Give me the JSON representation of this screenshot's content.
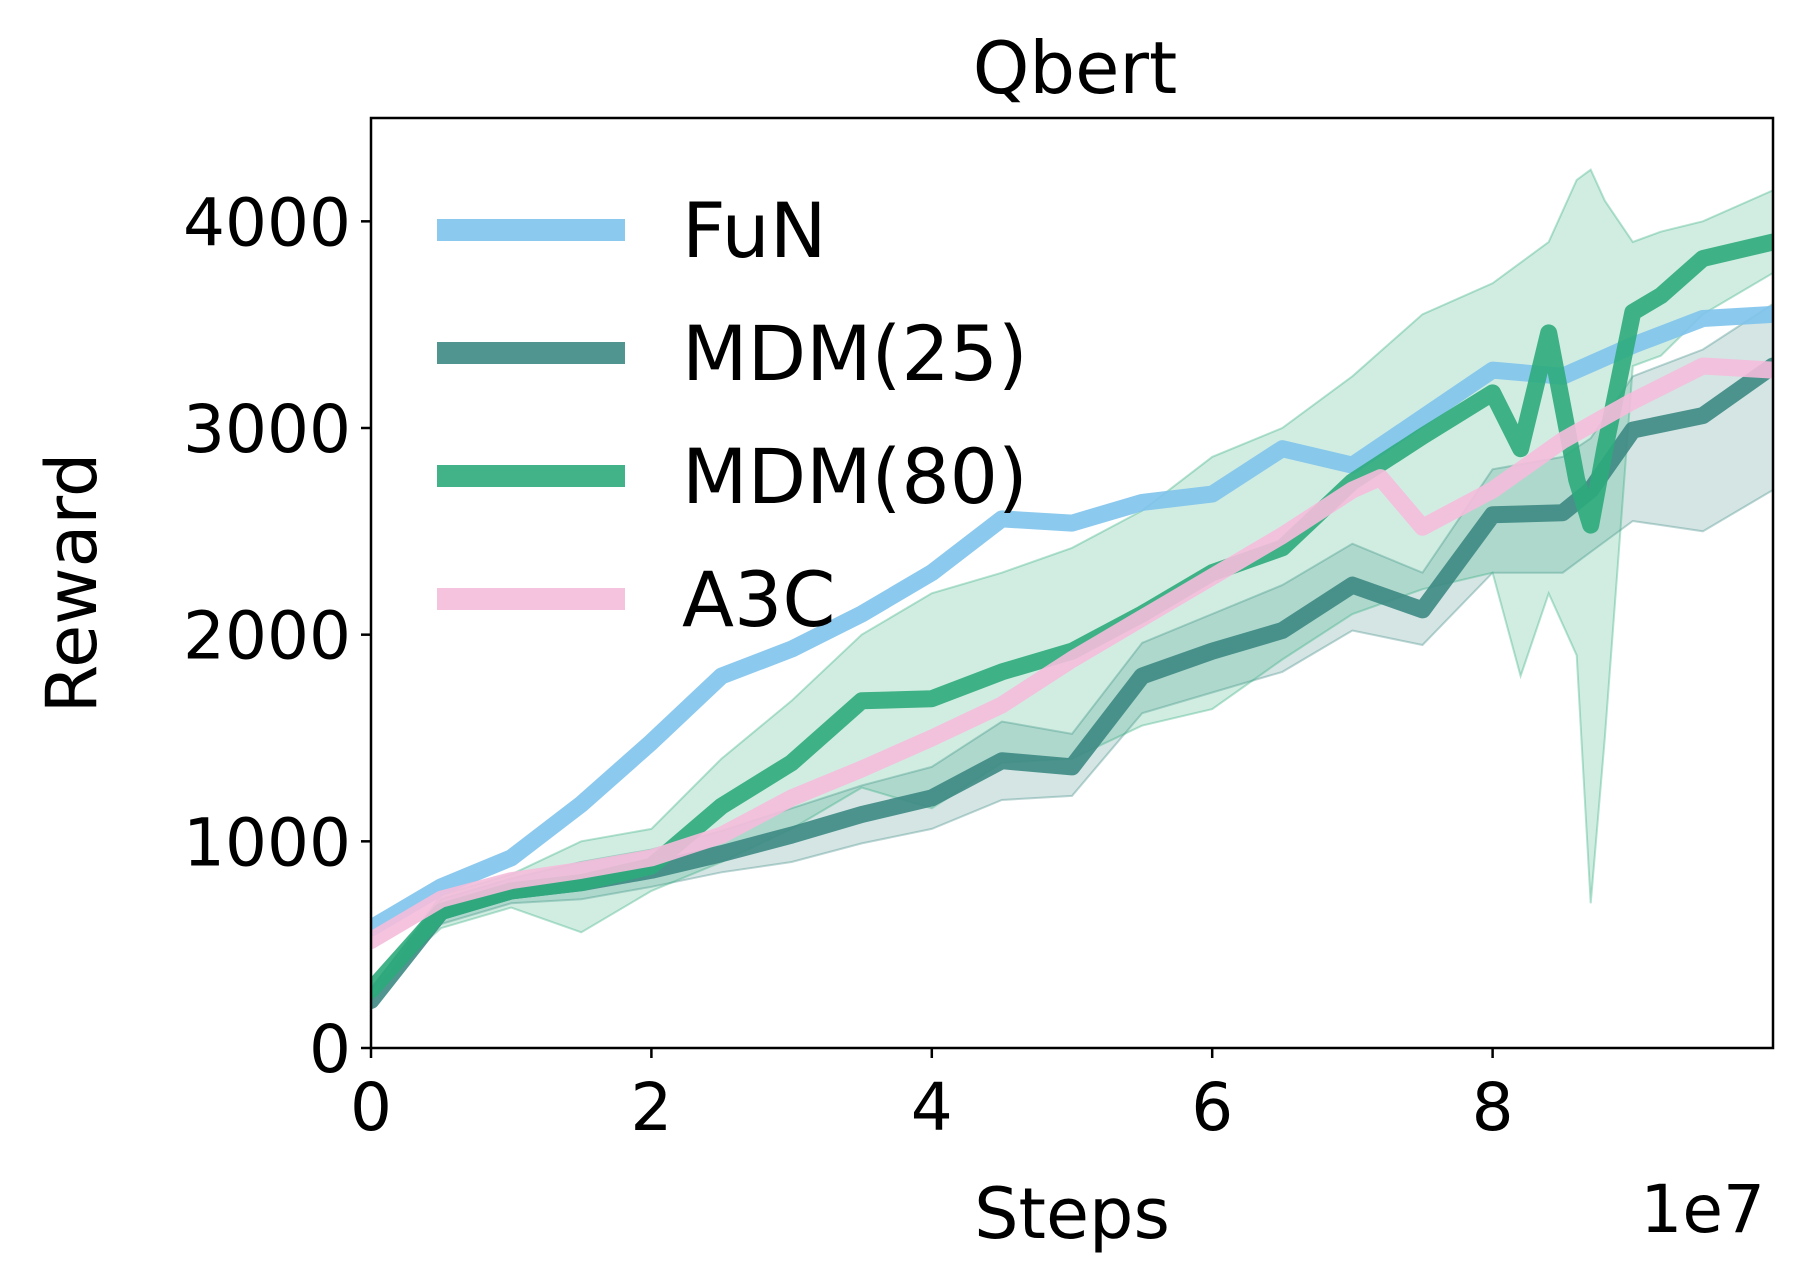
{
  "chart_data": {
    "type": "line",
    "title": "Qbert",
    "xlabel": "Steps",
    "ylabel": "Reward",
    "x_offset_label": "1e7",
    "xlim": [
      0,
      10
    ],
    "ylim": [
      0,
      4500
    ],
    "xticks": [
      0,
      2,
      4,
      6,
      8
    ],
    "yticks": [
      0,
      1000,
      2000,
      3000,
      4000
    ],
    "grid": false,
    "legend_position": "upper-left",
    "series": [
      {
        "name": "FuN",
        "color": "#7fc3ec",
        "x": [
          0,
          0.5,
          1.0,
          1.5,
          2.0,
          2.5,
          3.0,
          3.5,
          4.0,
          4.5,
          5.0,
          5.5,
          6.0,
          6.5,
          7.0,
          7.5,
          8.0,
          8.5,
          9.0,
          9.5,
          10.0
        ],
        "y": [
          580,
          780,
          920,
          1180,
          1480,
          1800,
          1930,
          2100,
          2300,
          2560,
          2540,
          2640,
          2680,
          2900,
          2820,
          3050,
          3280,
          3250,
          3400,
          3530,
          3550
        ]
      },
      {
        "name": "MDM(25)",
        "color": "#3d8a83",
        "band_color": "#3d8a83",
        "x": [
          0,
          0.5,
          1.0,
          1.5,
          2.0,
          2.5,
          3.0,
          3.5,
          4.0,
          4.5,
          5.0,
          5.5,
          6.0,
          6.5,
          7.0,
          7.5,
          8.0,
          8.5,
          8.7,
          9.0,
          9.5,
          10.0
        ],
        "y": [
          230,
          660,
          760,
          800,
          860,
          940,
          1030,
          1130,
          1210,
          1390,
          1360,
          1800,
          1920,
          2020,
          2240,
          2120,
          2580,
          2590,
          2700,
          2990,
          3060,
          3300
        ],
        "y_low": [
          230,
          600,
          700,
          720,
          780,
          850,
          900,
          990,
          1060,
          1200,
          1220,
          1620,
          1720,
          1820,
          2020,
          1950,
          2300,
          2300,
          2400,
          2550,
          2500,
          2700
        ],
        "y_high": [
          230,
          720,
          820,
          900,
          960,
          1050,
          1160,
          1270,
          1360,
          1580,
          1520,
          1960,
          2100,
          2240,
          2440,
          2300,
          2800,
          2860,
          2950,
          3250,
          3380,
          3600
        ]
      },
      {
        "name": "MDM(80)",
        "color": "#2eab7c",
        "band_color": "#2eab7c",
        "x": [
          0,
          0.5,
          1.0,
          1.5,
          2.0,
          2.5,
          3.0,
          3.5,
          4.0,
          4.5,
          5.0,
          5.5,
          6.0,
          6.5,
          7.0,
          7.5,
          8.0,
          8.2,
          8.4,
          8.6,
          8.7,
          8.8,
          9.0,
          9.2,
          9.5,
          10.0
        ],
        "y": [
          280,
          660,
          760,
          800,
          880,
          1170,
          1380,
          1680,
          1690,
          1820,
          1920,
          2100,
          2300,
          2420,
          2740,
          2960,
          3170,
          2900,
          3460,
          2750,
          2530,
          2900,
          3560,
          3640,
          3820,
          3900
        ],
        "y_low": [
          280,
          580,
          680,
          560,
          760,
          900,
          1060,
          1260,
          1160,
          1380,
          1400,
          1560,
          1640,
          1880,
          2100,
          2220,
          2300,
          1800,
          2200,
          1900,
          700,
          1500,
          3300,
          3350,
          3550,
          3750
        ],
        "y_high": [
          280,
          740,
          840,
          1000,
          1060,
          1400,
          1680,
          2000,
          2200,
          2300,
          2420,
          2600,
          2860,
          3000,
          3250,
          3550,
          3700,
          3800,
          3900,
          4200,
          4250,
          4100,
          3900,
          3950,
          4000,
          4150
        ]
      },
      {
        "name": "A3C",
        "color": "#f5bddb",
        "x": [
          0,
          0.5,
          1.0,
          1.5,
          2.0,
          2.5,
          3.0,
          3.5,
          4.0,
          4.5,
          5.0,
          5.5,
          6.0,
          6.5,
          7.0,
          7.2,
          7.5,
          8.0,
          8.5,
          9.0,
          9.5,
          10.0
        ],
        "y": [
          520,
          720,
          810,
          860,
          920,
          1030,
          1210,
          1350,
          1500,
          1660,
          1880,
          2080,
          2280,
          2480,
          2700,
          2760,
          2520,
          2700,
          2940,
          3130,
          3300,
          3280
        ]
      }
    ]
  }
}
